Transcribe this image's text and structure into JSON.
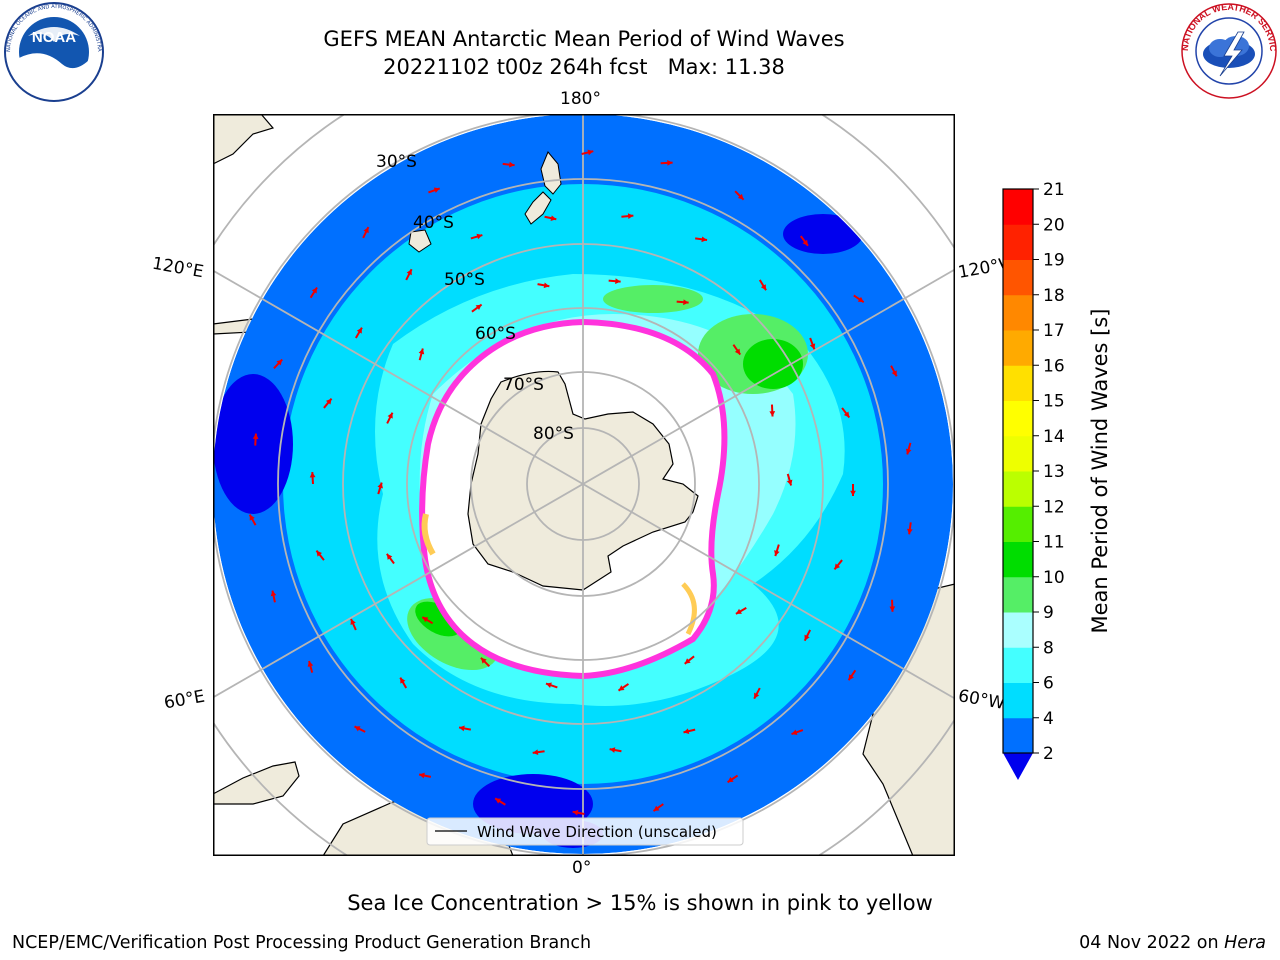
{
  "header": {
    "title_line1": "GEFS MEAN Antarctic Mean Period of Wind Waves",
    "title_line2": "20221102 t00z 264h fcst   Max: 11.38"
  },
  "logos": {
    "noaa_text": "NOAA",
    "noaa_ring_text": "NATIONAL OCEANIC AND ATMOSPHERIC ADMINISTRATION · U.S. DEPARTMENT OF COMMERCE",
    "nws_ring_text": "NATIONAL WEATHER SERVICE"
  },
  "map": {
    "projection": "south-polar-stereographic",
    "lon_labels": {
      "top": "180°",
      "bottom": "0°",
      "upper_left": "120°E",
      "upper_right": "120°W",
      "lower_left": "60°E",
      "lower_right": "60°W"
    },
    "lat_labels": [
      "30°S",
      "40°S",
      "50°S",
      "60°S",
      "70°S",
      "80°S"
    ],
    "legend_label": "Wind Wave Direction (unscaled)",
    "colors": {
      "land": "#efebdc",
      "ice": "#ffffff",
      "ice_edge_pink": "#ff33dd",
      "ice_edge_yellow": "#ffcc55",
      "arrow": "#ee0000",
      "grid": "#b5b5b5"
    }
  },
  "colorbar": {
    "label": "Mean Period of Wind Waves [s]",
    "ticks": [
      "2",
      "4",
      "6",
      "8",
      "9",
      "10",
      "11",
      "12",
      "13",
      "14",
      "15",
      "16",
      "17",
      "18",
      "19",
      "20",
      "21"
    ],
    "under_color": "#0000ee",
    "bin_colors": [
      "#0070ff",
      "#00ddff",
      "#44ffff",
      "#aaffff",
      "#55ee66",
      "#00dd00",
      "#55ee00",
      "#bbff00",
      "#eeff00",
      "#ffff00",
      "#ffe000",
      "#ffaa00",
      "#ff8800",
      "#ff5500",
      "#ff2200",
      "#ff0000"
    ]
  },
  "footer": {
    "note": "Sea Ice Concentration > 15% is shown in pink to yellow",
    "credit": "NCEP/EMC/Verification Post Processing Product Generation Branch",
    "date_text": "04 Nov 2022 on ",
    "machine": "Hera"
  }
}
